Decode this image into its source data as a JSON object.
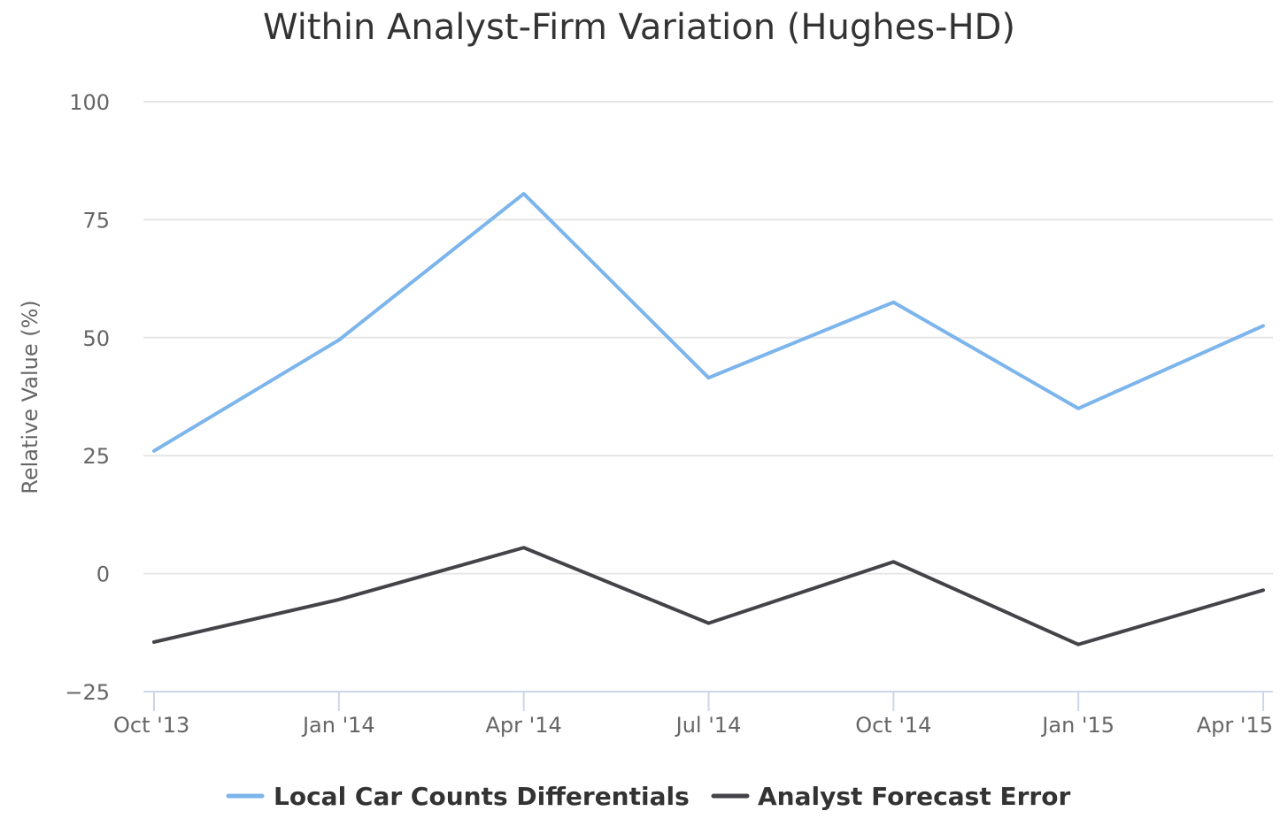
{
  "chart_data": {
    "type": "line",
    "title": "Within Analyst-Firm Variation (Hughes-HD)",
    "xlabel": "",
    "ylabel": "Relative Value (%)",
    "categories": [
      "Oct '13",
      "Jan '14",
      "Apr '14",
      "Jul '14",
      "Oct '14",
      "Jan '15",
      "Apr '15"
    ],
    "ylim": [
      -25,
      100
    ],
    "yticks": [
      "100",
      "75",
      "50",
      "25",
      "0",
      "−25"
    ],
    "ytick_values": [
      100,
      75,
      50,
      25,
      0,
      -25
    ],
    "grid": true,
    "legend_position": "bottom-center",
    "series": [
      {
        "name": "Local Car Counts Differentials",
        "color": "#7cb5ec",
        "values": [
          26,
          49.5,
          80.5,
          41.5,
          57.5,
          35,
          52.5
        ]
      },
      {
        "name": "Analyst Forecast Error",
        "color": "#434348",
        "values": [
          -14.5,
          -5.5,
          5.5,
          -10.5,
          2.5,
          -15,
          -3.5
        ]
      }
    ]
  }
}
